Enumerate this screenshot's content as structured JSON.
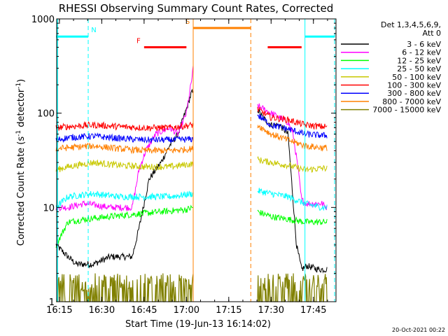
{
  "chart_data": {
    "type": "line",
    "title": "RHESSI Observing Summary Count Rates, Corrected",
    "xlabel": "Start Time (19-Jun-13 16:14:02)",
    "ylabel_main": "Corrected Count Rate (s",
    "ylabel_sup1": "-1",
    "ylabel_mid": " detector",
    "ylabel_sup2": "-1",
    "ylabel_end": ")",
    "xlim": [
      16.2339,
      17.8833
    ],
    "ylim": [
      1,
      1000
    ],
    "yscale": "log",
    "x_ticks": [
      {
        "value": 16.25,
        "label": "16:15"
      },
      {
        "value": 16.5,
        "label": "16:30"
      },
      {
        "value": 16.75,
        "label": "16:45"
      },
      {
        "value": 17.0,
        "label": "17:00"
      },
      {
        "value": 17.25,
        "label": "17:15"
      },
      {
        "value": 17.5,
        "label": "17:30"
      },
      {
        "value": 17.75,
        "label": "17:45"
      }
    ],
    "y_ticks": [
      {
        "value": 1,
        "label": "1"
      },
      {
        "value": 10,
        "label": "10"
      },
      {
        "value": 100,
        "label": "100"
      },
      {
        "value": 1000,
        "label": "1000"
      }
    ],
    "legend": {
      "placement": "right",
      "header1": "Det 1,3,4,5,6,9,",
      "header2": "Att 0"
    },
    "series": [
      {
        "name": "3 - 6 keV",
        "color": "#000000",
        "x": [
          16.23,
          16.3,
          16.35,
          16.45,
          16.55,
          16.68,
          16.72,
          16.78,
          16.85,
          16.9,
          16.95,
          17.0,
          17.03,
          17.42,
          17.45,
          17.5,
          17.55,
          17.6,
          17.65,
          17.68,
          17.71,
          17.78,
          17.83
        ],
        "y": [
          4,
          3,
          2.5,
          2.5,
          3,
          3,
          6,
          20,
          30,
          45,
          60,
          110,
          165,
          110,
          90,
          75,
          75,
          60,
          4,
          2.2,
          2.4,
          2.2,
          2.2
        ]
      },
      {
        "name": "6 - 12 keV",
        "color": "#ff00ff",
        "x": [
          16.23,
          16.3,
          16.4,
          16.55,
          16.68,
          16.72,
          16.76,
          16.82,
          16.9,
          16.95,
          17.0,
          17.03,
          17.04,
          17.42,
          17.5,
          17.6,
          17.63,
          17.66,
          17.68,
          17.71,
          17.8,
          17.83
        ],
        "y": [
          10,
          10,
          11,
          10,
          10,
          25,
          40,
          60,
          70,
          60,
          100,
          220,
          300,
          120,
          100,
          80,
          60,
          25,
          12,
          11,
          11,
          10
        ]
      },
      {
        "name": "12 - 25 keV",
        "color": "#00ff00",
        "x": [
          16.23,
          16.3,
          16.4,
          16.55,
          16.7,
          16.85,
          17.0,
          17.04,
          17.42,
          17.5,
          17.6,
          17.7,
          17.8,
          17.83
        ],
        "y": [
          4,
          7,
          7.5,
          8,
          8.5,
          9,
          9.5,
          10,
          9,
          8,
          7.5,
          7,
          7,
          7
        ]
      },
      {
        "name": "25 - 50 keV",
        "color": "#00ffff",
        "x": [
          16.23,
          16.3,
          16.45,
          16.6,
          16.75,
          16.9,
          17.04,
          17.42,
          17.5,
          17.6,
          17.7,
          17.8,
          17.83
        ],
        "y": [
          10,
          13,
          14,
          13,
          13,
          13,
          14,
          15,
          14,
          13,
          11,
          10,
          10
        ]
      },
      {
        "name": "50 - 100 keV",
        "color": "#c8c800",
        "x": [
          16.23,
          16.3,
          16.45,
          16.6,
          16.75,
          16.9,
          17.04,
          17.42,
          17.5,
          17.6,
          17.7,
          17.8,
          17.83
        ],
        "y": [
          25,
          27,
          30,
          28,
          27,
          27,
          29,
          32,
          30,
          28,
          25,
          26,
          26
        ]
      },
      {
        "name": "100 - 300 keV",
        "color": "#ff0000",
        "x": [
          16.23,
          16.3,
          16.45,
          16.6,
          16.75,
          16.9,
          17.04,
          17.42,
          17.5,
          17.6,
          17.7,
          17.8,
          17.83
        ],
        "y": [
          70,
          72,
          75,
          72,
          70,
          70,
          75,
          110,
          90,
          85,
          75,
          72,
          72
        ]
      },
      {
        "name": "300 - 800 keV",
        "color": "#0000ff",
        "x": [
          16.23,
          16.3,
          16.45,
          16.6,
          16.75,
          16.9,
          17.04,
          17.42,
          17.5,
          17.6,
          17.7,
          17.8,
          17.83
        ],
        "y": [
          52,
          55,
          57,
          54,
          52,
          52,
          53,
          95,
          75,
          68,
          60,
          58,
          58
        ]
      },
      {
        "name": "800 - 7000 keV",
        "color": "#ff8000",
        "x": [
          16.23,
          16.3,
          16.45,
          16.6,
          16.75,
          16.9,
          17.04,
          17.42,
          17.5,
          17.6,
          17.7,
          17.8,
          17.83
        ],
        "y": [
          42,
          43,
          45,
          42,
          40,
          40,
          42,
          75,
          60,
          52,
          45,
          43,
          43
        ]
      },
      {
        "name": "7000 - 15000 keV",
        "color": "#808000",
        "x": [
          16.23,
          16.35,
          16.5,
          16.65,
          16.8,
          16.95,
          17.04,
          17.42,
          17.55,
          17.7,
          17.83
        ],
        "y": [
          2,
          2,
          2,
          2,
          2,
          2,
          2,
          2,
          2,
          2,
          2
        ]
      }
    ],
    "gaps": [
      {
        "from": 17.04,
        "to": 17.42
      }
    ],
    "annotations": [
      {
        "label": "N",
        "color": "#00ffff",
        "x_start": 16.23,
        "x_end": 16.42,
        "bar_y": 650,
        "line": "dashed-end"
      },
      {
        "label": "N",
        "color": "#00ffff",
        "x_start": 17.7,
        "x_end": 17.88,
        "bar_y": 650,
        "line": "solid-start-dashed-end",
        "show_label": false
      },
      {
        "label": "F",
        "color": "#ff0000",
        "x_start": 16.75,
        "x_end": 17.0,
        "bar_y": 500
      },
      {
        "label": "F",
        "color": "#ff0000",
        "x_start": 17.48,
        "x_end": 17.68,
        "bar_y": 500,
        "show_label": false
      },
      {
        "label": "S",
        "color": "#ff8000",
        "x_start": 17.04,
        "x_end": 17.38,
        "bar_y": 800,
        "line": "solid-start-dashed-end"
      }
    ],
    "grid": false,
    "background": "#ffffff",
    "foreground": "#000000"
  },
  "footer": {
    "date": "20-Oct-2021 00:22"
  }
}
